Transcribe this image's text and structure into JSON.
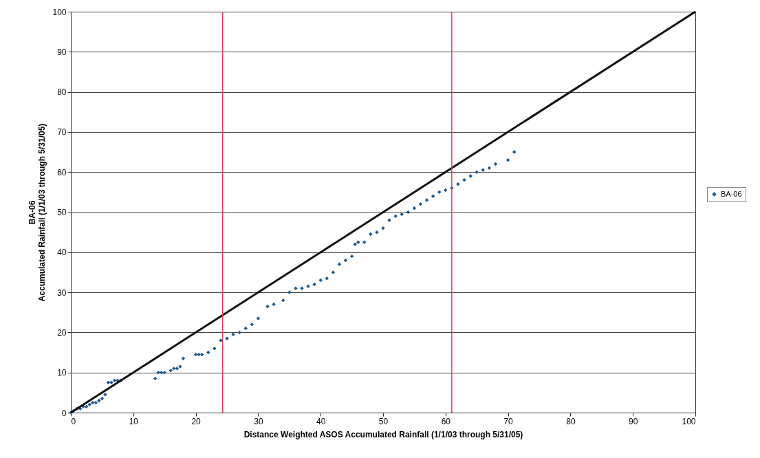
{
  "chart_data": {
    "type": "scatter",
    "xlabel": "Distance Weighted ASOS Accumulated Rainfall (1/1/03 through 5/31/05)",
    "ylabel": "BA-06\nAccumulated Rainfall (1/1/03 through 5/31/05)",
    "xlim": [
      0,
      100
    ],
    "ylim": [
      0,
      100
    ],
    "xticks": [
      0,
      10,
      20,
      30,
      40,
      50,
      60,
      70,
      80,
      90,
      100
    ],
    "yticks": [
      0,
      10,
      20,
      30,
      40,
      50,
      60,
      70,
      80,
      90,
      100
    ],
    "grid": "y",
    "legend": "right",
    "marker": "diamond",
    "series": [
      {
        "name": "BA-06",
        "color": "#1f5a8f",
        "x": [
          0,
          0.5,
          1,
          1.5,
          2,
          2.5,
          3,
          3.5,
          4,
          4.5,
          5,
          5.5,
          6,
          6.5,
          7,
          7.5,
          8,
          13.5,
          14,
          14.5,
          15,
          16,
          16.5,
          17,
          17.5,
          18,
          20,
          20.5,
          21,
          22,
          23,
          24,
          25,
          26,
          27,
          28,
          29,
          30,
          31.5,
          32.5,
          34,
          35,
          36,
          37,
          38,
          39,
          40,
          41,
          42,
          43,
          44,
          45,
          45.5,
          46,
          47,
          48,
          49,
          50,
          51,
          52,
          53,
          54,
          55,
          56,
          57,
          58,
          59,
          60,
          61,
          62,
          63,
          64,
          65,
          66,
          67,
          68,
          70,
          71
        ],
        "values": [
          0,
          0.5,
          1,
          1,
          1.5,
          1.5,
          2,
          2.5,
          2.5,
          3,
          3.5,
          4.5,
          7.5,
          7.5,
          8,
          8,
          8,
          8.5,
          10,
          10,
          10,
          10.5,
          11,
          11,
          11.5,
          13.5,
          14.5,
          14.5,
          14.5,
          15,
          16,
          18,
          18.5,
          19.5,
          20,
          21,
          22,
          23.5,
          26.5,
          27,
          28,
          30,
          31,
          31,
          31.5,
          32,
          33,
          33.5,
          35,
          37,
          38,
          39,
          42,
          42.5,
          42.5,
          44.5,
          45,
          46,
          48,
          49,
          49.5,
          50,
          51,
          52,
          53,
          54,
          55,
          55.5,
          56,
          57,
          58,
          59,
          60,
          60.5,
          61,
          62,
          63,
          65
        ]
      },
      {
        "color": "#111111",
        "type": "line",
        "marker": "none",
        "x": [
          0,
          100
        ],
        "values": [
          0,
          100
        ]
      }
    ],
    "ref_lines": [
      {
        "axis": "x",
        "value": 24.3,
        "color": "#e0405a"
      },
      {
        "axis": "x",
        "value": 61,
        "color": "#e0405a"
      }
    ]
  }
}
